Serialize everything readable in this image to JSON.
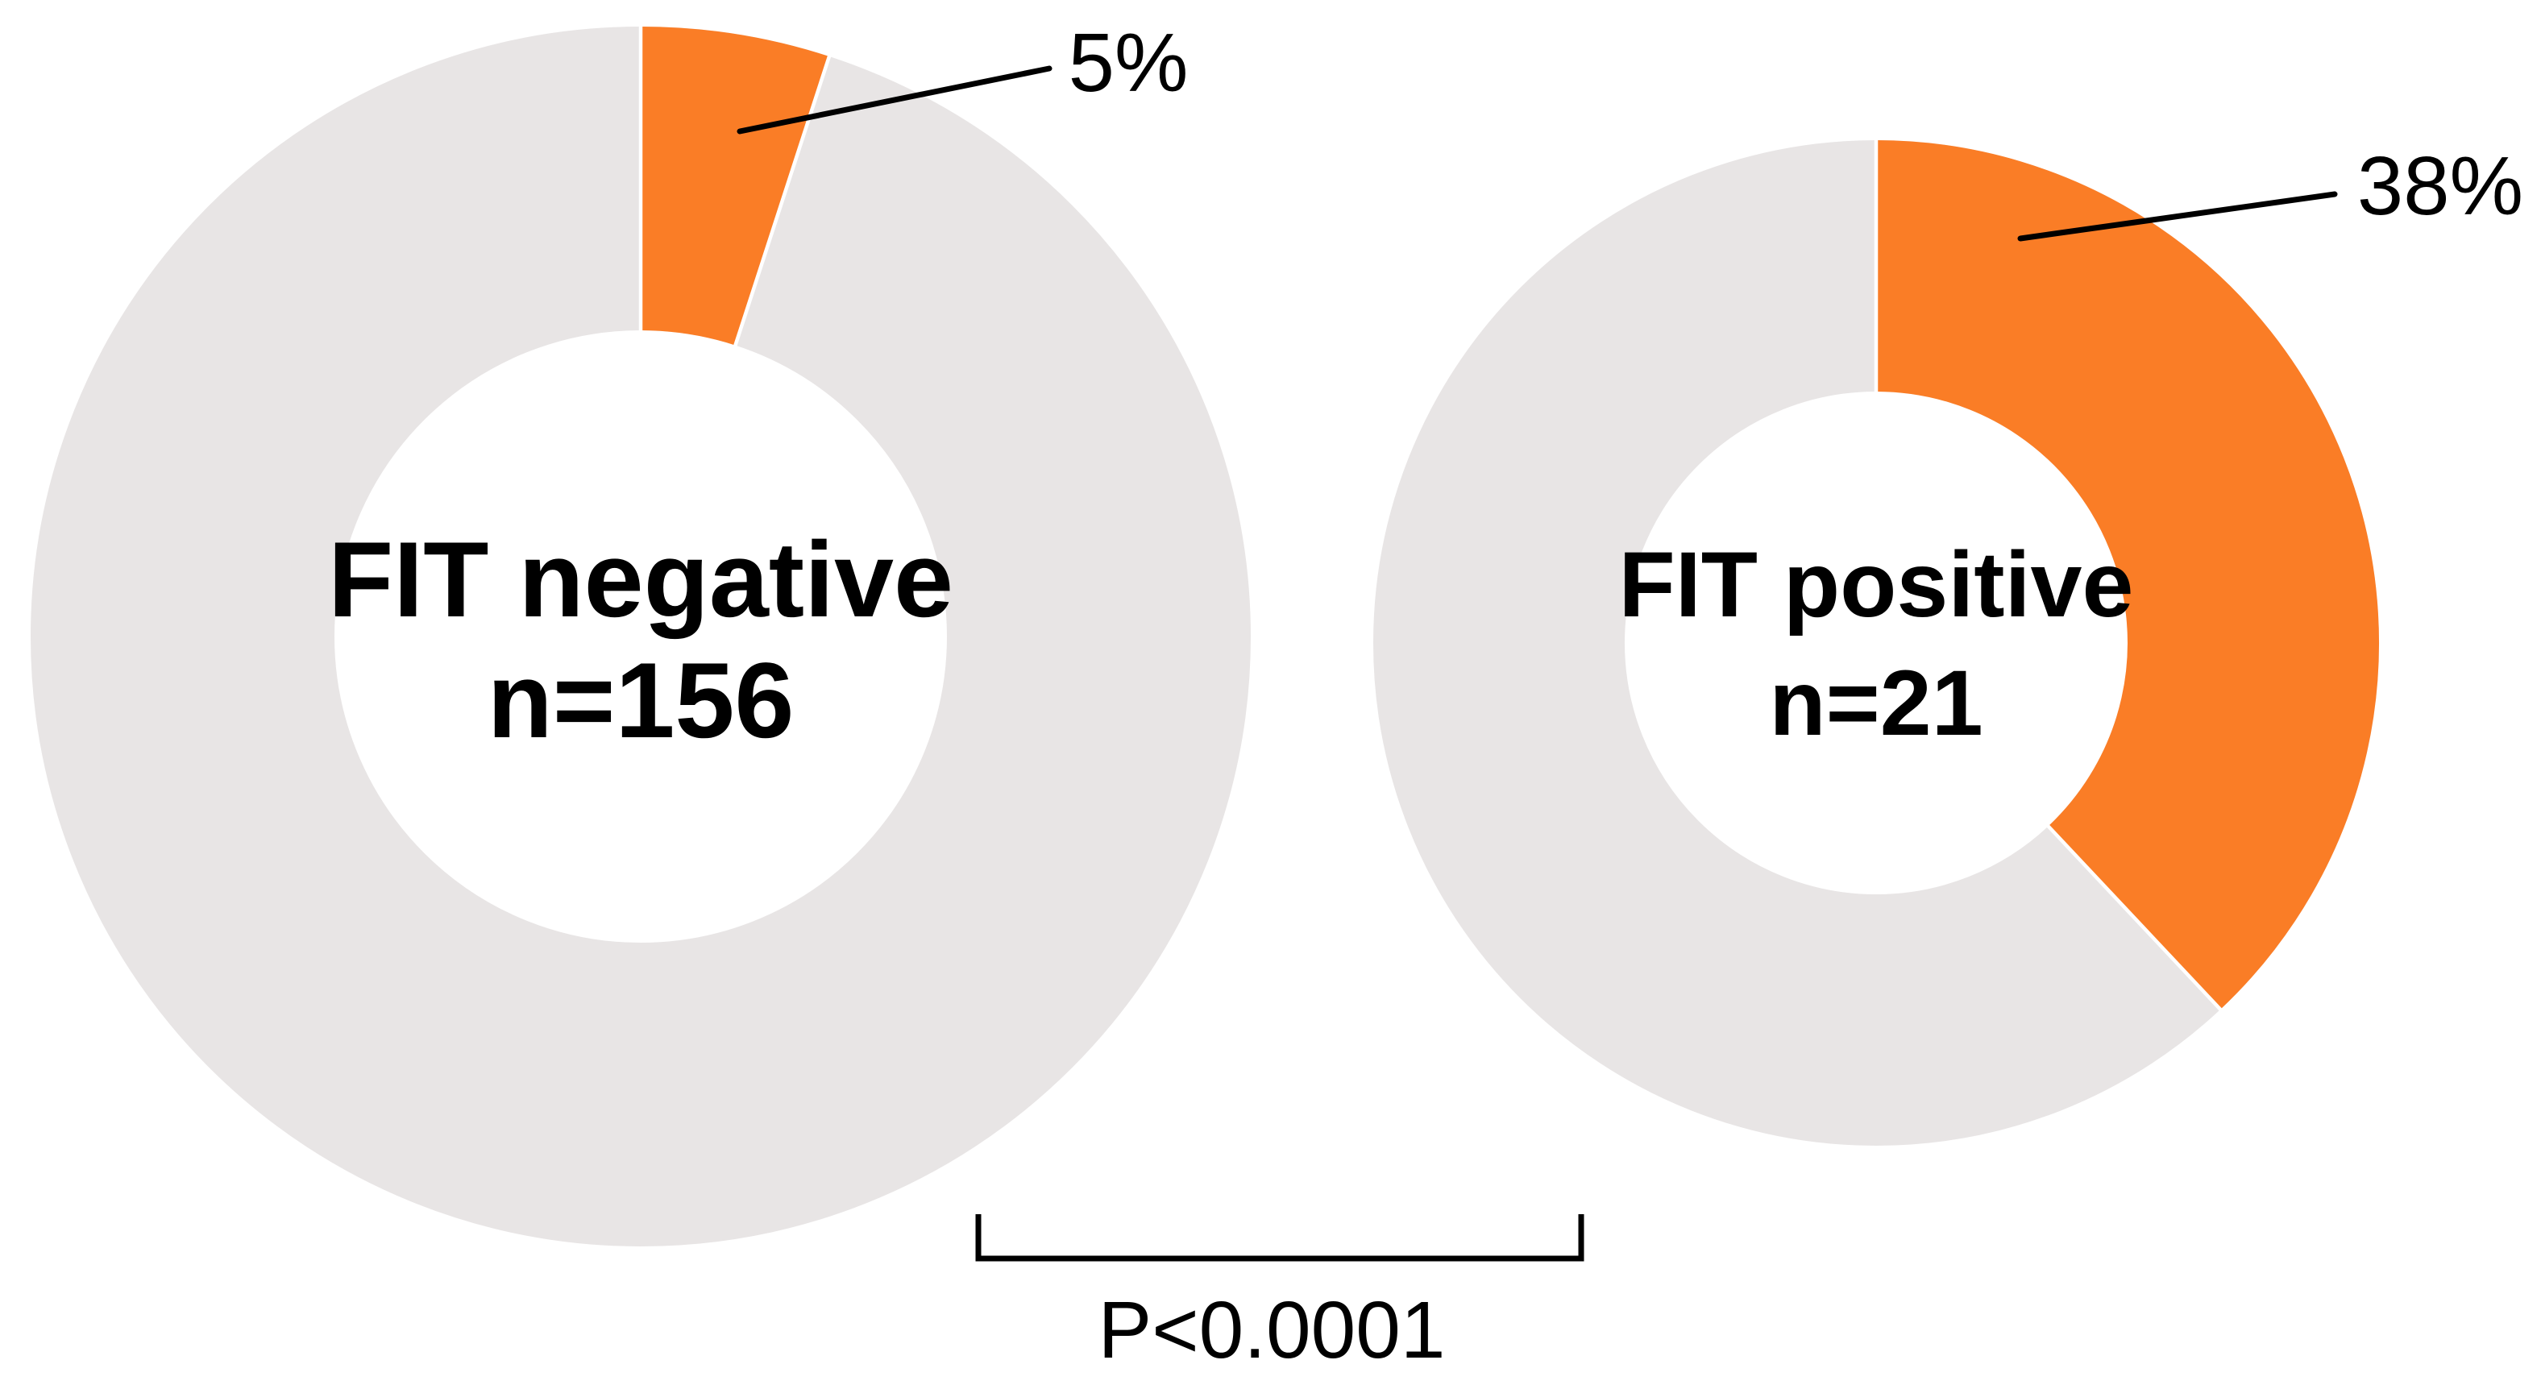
{
  "figure": {
    "background": "#FFFFFF",
    "description": "Two donut charts comparing proportions between FIT negative and FIT positive groups"
  },
  "chart_data": {
    "type": "pie",
    "subtype": "donut",
    "legend": "none",
    "grid": false,
    "colors": {
      "highlight": "#FA7D26",
      "remainder": "#E8E5E5",
      "text": "#000000",
      "line": "#000000"
    },
    "charts": [
      {
        "title": "FIT negative",
        "count_label": "n=156",
        "n": 156,
        "percent": 5,
        "percent_label": "5%",
        "start_angle_deg": 0,
        "direction": "clockwise",
        "slices": [
          {
            "name": "highlighted",
            "value": 5
          },
          {
            "name": "remainder",
            "value": 95
          }
        ]
      },
      {
        "title": "FIT positive",
        "count_label": "n=21",
        "n": 21,
        "percent": 38,
        "percent_label": "38%",
        "start_angle_deg": 0,
        "direction": "clockwise",
        "slices": [
          {
            "name": "highlighted",
            "value": 38
          },
          {
            "name": "remainder",
            "value": 62
          }
        ]
      }
    ],
    "comparison": {
      "label": "P<0.0001"
    }
  }
}
